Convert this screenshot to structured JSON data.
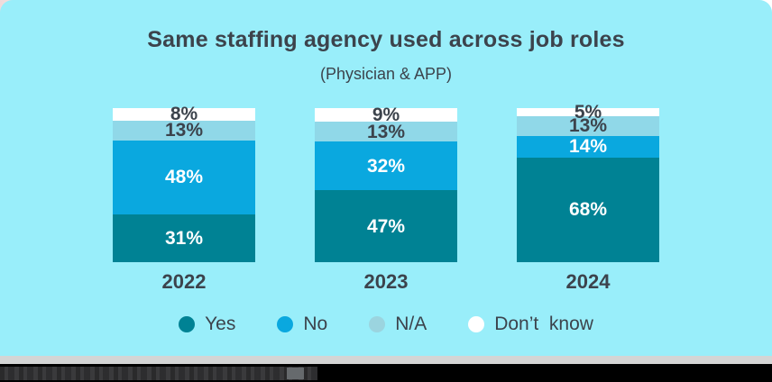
{
  "card": {
    "title": "Same staffing agency used across job roles",
    "subtitle": "(Physician & APP)"
  },
  "colors": {
    "card_background": "#99EEFA",
    "text_dark": "#3C434C",
    "yes": "#008294",
    "no": "#0AA8DF",
    "na": "#90D8E8",
    "dont_know": "#FFFFFF",
    "footer_gray_strip": "#D4D5D5",
    "footer_black_bar": "#000000"
  },
  "chart_data": {
    "type": "bar",
    "stacked": true,
    "orientation": "vertical",
    "title": "Same staffing agency used across job roles",
    "subtitle": "(Physician & APP)",
    "value_suffix": "%",
    "categories": [
      "2022",
      "2023",
      "2024"
    ],
    "series": [
      {
        "name": "Don’t know",
        "color": "#FFFFFF",
        "label_text_color": "#3C434C",
        "values": [
          8,
          9,
          5
        ]
      },
      {
        "name": "N/A",
        "color": "#90D8E8",
        "label_text_color": "#3C434C",
        "values": [
          13,
          13,
          13
        ]
      },
      {
        "name": "No",
        "color": "#0AA8DF",
        "label_text_color": "#FFFFFF",
        "values": [
          48,
          32,
          14
        ]
      },
      {
        "name": "Yes",
        "color": "#008294",
        "label_text_color": "#FFFFFF",
        "values": [
          31,
          47,
          68
        ]
      }
    ],
    "series_note": "series listed top-to-bottom as stacked in each bar",
    "legend": [
      {
        "label": "Yes",
        "color": "#008294"
      },
      {
        "label": "No",
        "color": "#0AA8DF"
      },
      {
        "label": "N/A",
        "color": "#9BD4DF"
      },
      {
        "label": "Don’t  know",
        "color": "#FFFFFF"
      }
    ],
    "legend_position": "bottom",
    "axes": "none",
    "grid": false,
    "data_labels": "inside-segments"
  }
}
